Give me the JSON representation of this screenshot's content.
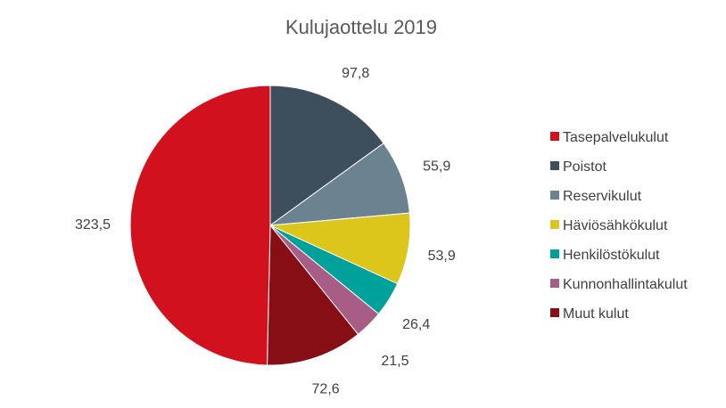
{
  "chart_data": {
    "type": "pie",
    "title": "Kulujaottelu 2019",
    "legend_position": "right",
    "start_angle_deg": 0,
    "direction": "clockwise",
    "slices": [
      {
        "label": "Tasepalvelukulut",
        "value": 323.5,
        "value_label": "323,5",
        "color": "#d2111e"
      },
      {
        "label": "Poistot",
        "value": 97.8,
        "value_label": "97,8",
        "color": "#3d4f5c"
      },
      {
        "label": "Reservikulut",
        "value": 55.9,
        "value_label": "55,9",
        "color": "#6b8290"
      },
      {
        "label": "Häviösähkökulut",
        "value": 53.9,
        "value_label": "53,9",
        "color": "#dcc61c"
      },
      {
        "label": "Henkilöstökulut",
        "value": 26.4,
        "value_label": "26,4",
        "color": "#00a19a"
      },
      {
        "label": "Kunnonhallintakulut",
        "value": 21.5,
        "value_label": "21,5",
        "color": "#a85d87"
      },
      {
        "label": "Muut kulut",
        "value": 72.6,
        "value_label": "72,6",
        "color": "#860e14"
      }
    ],
    "slice_order_clockwise_from_top": [
      "Poistot",
      "Reservikulut",
      "Häviösähkökulut",
      "Henkilöstökulut",
      "Kunnonhallintakulut",
      "Muut kulut",
      "Tasepalvelukulut"
    ]
  }
}
